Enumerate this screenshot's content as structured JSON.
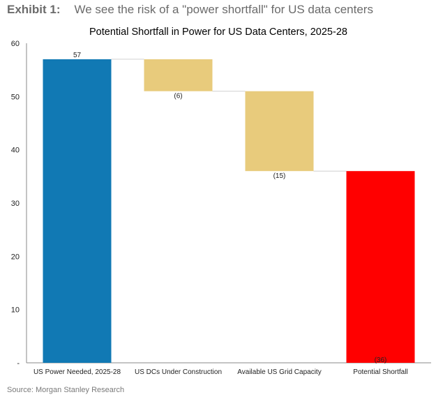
{
  "exhibit": {
    "label": "Exhibit 1:",
    "text": "We see the risk of a \"power shortfall\" for US data centers"
  },
  "source": "Source: Morgan Stanley Research",
  "colors": {
    "blue": "#1179b4",
    "tan": "#e8cb7c",
    "red": "#ff0000",
    "connector": "#d0d0d0",
    "axis": "#888888"
  },
  "chart_data": {
    "type": "bar",
    "subtype": "waterfall",
    "title": "Potential Shortfall in Power for US Data Centers, 2025-28",
    "xlabel": "",
    "ylabel": "",
    "ylim": [
      0,
      60
    ],
    "yticks": [
      "-",
      "10",
      "20",
      "30",
      "40",
      "50",
      "60"
    ],
    "grid": false,
    "legend": "none",
    "categories": [
      "US Power Needed, 2025-28",
      "US DCs Under Construction",
      "Available US Grid Capacity",
      "Potential Shortfall"
    ],
    "bars": [
      {
        "category": "US Power Needed, 2025-28",
        "start": 0,
        "end": 57,
        "label": "57",
        "color": "blue"
      },
      {
        "category": "US DCs Under Construction",
        "start": 51,
        "end": 57,
        "label": "(6)",
        "color": "tan"
      },
      {
        "category": "Available US Grid Capacity",
        "start": 36,
        "end": 51,
        "label": "(15)",
        "color": "tan"
      },
      {
        "category": "Potential Shortfall",
        "start": 0,
        "end": 36,
        "label": "(36)",
        "color": "red"
      }
    ]
  }
}
